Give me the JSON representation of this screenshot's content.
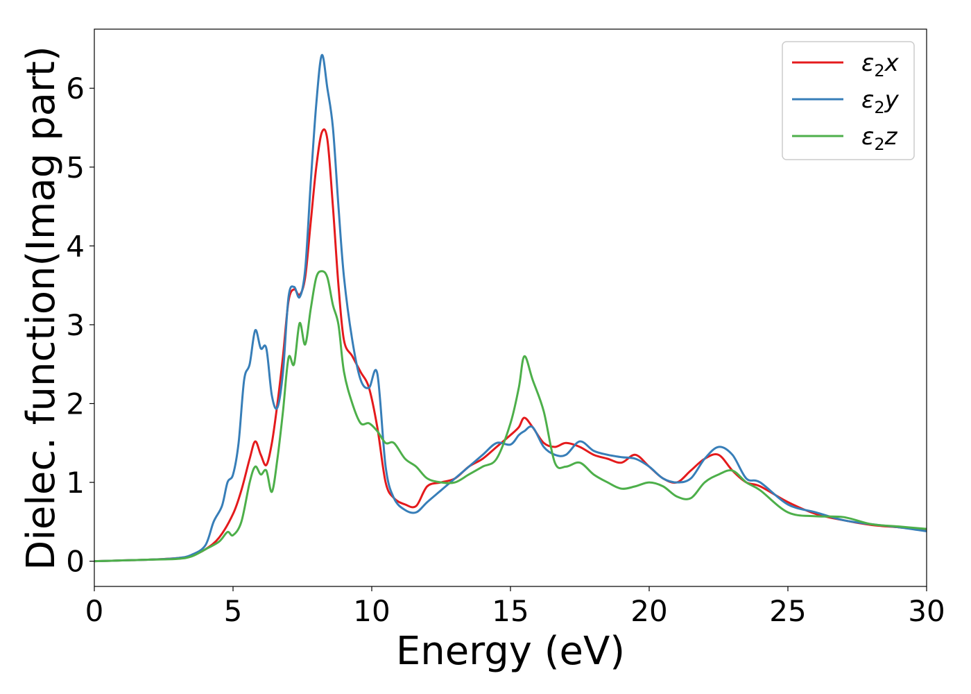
{
  "chart_data": {
    "type": "line",
    "xlabel": "Energy (eV)",
    "ylabel": "Dielec. function(Imag part)",
    "xlim": [
      0,
      30
    ],
    "ylim": [
      -0.32,
      6.75
    ],
    "xticks": [
      0,
      5,
      10,
      15,
      20,
      25,
      30
    ],
    "yticks": [
      0,
      1,
      2,
      3,
      4,
      5,
      6
    ],
    "grid": false,
    "legend_position": "top-right",
    "series": [
      {
        "name": "ε₂x",
        "legend_main": "ε",
        "legend_sub": "2",
        "legend_var": "x",
        "color": "#e41a1c",
        "x": [
          0,
          1,
          2,
          3,
          3.5,
          4,
          4.5,
          5,
          5.3,
          5.6,
          5.8,
          6.0,
          6.2,
          6.4,
          6.6,
          6.8,
          7.0,
          7.2,
          7.4,
          7.6,
          7.8,
          8.0,
          8.2,
          8.4,
          8.6,
          8.8,
          9.0,
          9.3,
          9.6,
          9.9,
          10.2,
          10.5,
          10.8,
          11.2,
          11.6,
          12.0,
          12.5,
          13.0,
          13.5,
          14.0,
          14.5,
          15.0,
          15.3,
          15.5,
          15.8,
          16.2,
          16.6,
          17.0,
          17.5,
          18.0,
          18.5,
          19.0,
          19.5,
          20.0,
          20.5,
          21.0,
          21.5,
          22.0,
          22.5,
          23.0,
          23.5,
          24.0,
          25.0,
          26.0,
          27.0,
          28.0,
          29.0,
          30.0
        ],
        "values": [
          0.0,
          0.01,
          0.02,
          0.04,
          0.07,
          0.15,
          0.3,
          0.6,
          0.9,
          1.3,
          1.52,
          1.35,
          1.22,
          1.5,
          2.0,
          2.6,
          3.3,
          3.45,
          3.38,
          3.6,
          4.3,
          5.0,
          5.44,
          5.35,
          4.5,
          3.5,
          2.8,
          2.6,
          2.4,
          2.2,
          1.7,
          1.0,
          0.8,
          0.72,
          0.7,
          0.95,
          1.0,
          1.05,
          1.2,
          1.3,
          1.45,
          1.6,
          1.7,
          1.82,
          1.7,
          1.5,
          1.45,
          1.5,
          1.45,
          1.35,
          1.3,
          1.25,
          1.35,
          1.2,
          1.05,
          1.0,
          1.15,
          1.3,
          1.35,
          1.15,
          1.0,
          0.95,
          0.75,
          0.6,
          0.52,
          0.46,
          0.43,
          0.4
        ]
      },
      {
        "name": "ε₂y",
        "legend_main": "ε",
        "legend_sub": "2",
        "legend_var": "y",
        "color": "#377eb8",
        "x": [
          0,
          1,
          2,
          3,
          3.5,
          4,
          4.3,
          4.6,
          4.8,
          5.0,
          5.2,
          5.4,
          5.6,
          5.8,
          6.0,
          6.2,
          6.4,
          6.6,
          6.8,
          7.0,
          7.2,
          7.4,
          7.6,
          7.8,
          8.0,
          8.2,
          8.4,
          8.6,
          8.8,
          9.0,
          9.3,
          9.6,
          9.9,
          10.2,
          10.5,
          10.8,
          11.2,
          11.6,
          12.0,
          12.5,
          13.0,
          13.5,
          14.0,
          14.5,
          15.0,
          15.3,
          15.5,
          15.8,
          16.2,
          16.6,
          17.0,
          17.5,
          18.0,
          18.5,
          19.0,
          19.5,
          20.0,
          20.5,
          21.0,
          21.5,
          22.0,
          22.5,
          23.0,
          23.5,
          24.0,
          25.0,
          26.0,
          27.0,
          28.0,
          29.0,
          30.0
        ],
        "values": [
          0.0,
          0.01,
          0.02,
          0.04,
          0.08,
          0.2,
          0.5,
          0.7,
          1.0,
          1.1,
          1.5,
          2.3,
          2.5,
          2.93,
          2.7,
          2.7,
          2.1,
          1.95,
          2.4,
          3.35,
          3.48,
          3.35,
          3.7,
          4.8,
          5.8,
          6.42,
          6.0,
          5.5,
          4.5,
          3.6,
          2.8,
          2.3,
          2.2,
          2.38,
          1.2,
          0.8,
          0.65,
          0.62,
          0.75,
          0.9,
          1.05,
          1.2,
          1.35,
          1.5,
          1.48,
          1.6,
          1.65,
          1.7,
          1.45,
          1.35,
          1.35,
          1.52,
          1.4,
          1.35,
          1.32,
          1.3,
          1.2,
          1.05,
          1.0,
          1.05,
          1.3,
          1.45,
          1.35,
          1.05,
          1.0,
          0.72,
          0.62,
          0.52,
          0.47,
          0.43,
          0.38
        ]
      },
      {
        "name": "ε₂z",
        "legend_main": "ε",
        "legend_sub": "2",
        "legend_var": "z",
        "color": "#4daf4a",
        "x": [
          0,
          1,
          2,
          3,
          3.5,
          4,
          4.5,
          4.8,
          5.0,
          5.3,
          5.6,
          5.8,
          6.0,
          6.2,
          6.4,
          6.6,
          6.8,
          7.0,
          7.2,
          7.4,
          7.6,
          7.8,
          8.0,
          8.2,
          8.4,
          8.6,
          8.8,
          9.0,
          9.3,
          9.6,
          9.9,
          10.2,
          10.5,
          10.8,
          11.2,
          11.6,
          12.0,
          12.5,
          13.0,
          13.5,
          14.0,
          14.5,
          15.0,
          15.3,
          15.5,
          15.8,
          16.2,
          16.6,
          17.0,
          17.5,
          18.0,
          18.5,
          19.0,
          19.5,
          20.0,
          20.5,
          21.0,
          21.5,
          22.0,
          22.5,
          23.0,
          23.5,
          24.0,
          25.0,
          26.0,
          27.0,
          28.0,
          29.0,
          30.0
        ],
        "values": [
          0.0,
          0.01,
          0.02,
          0.03,
          0.06,
          0.15,
          0.25,
          0.37,
          0.33,
          0.5,
          1.0,
          1.2,
          1.1,
          1.15,
          0.88,
          1.3,
          1.9,
          2.58,
          2.5,
          3.02,
          2.75,
          3.2,
          3.6,
          3.68,
          3.6,
          3.25,
          3.0,
          2.4,
          2.0,
          1.75,
          1.75,
          1.65,
          1.5,
          1.5,
          1.3,
          1.2,
          1.05,
          1.0,
          1.0,
          1.1,
          1.2,
          1.3,
          1.75,
          2.2,
          2.6,
          2.3,
          1.9,
          1.25,
          1.2,
          1.25,
          1.1,
          1.0,
          0.92,
          0.95,
          1.0,
          0.95,
          0.82,
          0.8,
          1.0,
          1.1,
          1.15,
          1.0,
          0.9,
          0.62,
          0.57,
          0.56,
          0.47,
          0.44,
          0.41
        ]
      }
    ]
  }
}
